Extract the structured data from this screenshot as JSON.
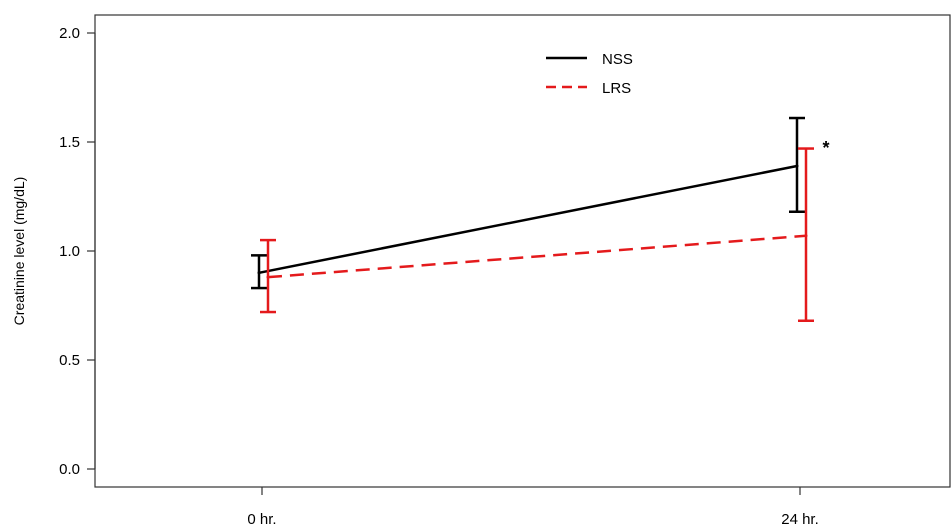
{
  "chart_data": {
    "type": "line",
    "title": "",
    "xlabel": "",
    "ylabel": "Creatinine level (mg/dL)",
    "categories": [
      "0 hr.",
      "24 hr."
    ],
    "ylim": [
      0,
      2
    ],
    "yticks": [
      "0.0",
      "0.5",
      "1.0",
      "1.5",
      "2.0"
    ],
    "grid": false,
    "legend_position": "top-center",
    "series": [
      {
        "name": "NSS",
        "color": "#000000",
        "dash": "solid",
        "values": [
          0.9,
          1.39
        ],
        "error_low": [
          0.83,
          1.18
        ],
        "error_high": [
          0.98,
          1.61
        ]
      },
      {
        "name": "LRS",
        "color": "#e41a1c",
        "dash": "dashed",
        "values": [
          0.88,
          1.07
        ],
        "error_low": [
          0.72,
          0.68
        ],
        "error_high": [
          1.05,
          1.47
        ]
      }
    ],
    "annotations": [
      {
        "text": "*",
        "category": "24 hr.",
        "y": 1.49
      }
    ]
  }
}
